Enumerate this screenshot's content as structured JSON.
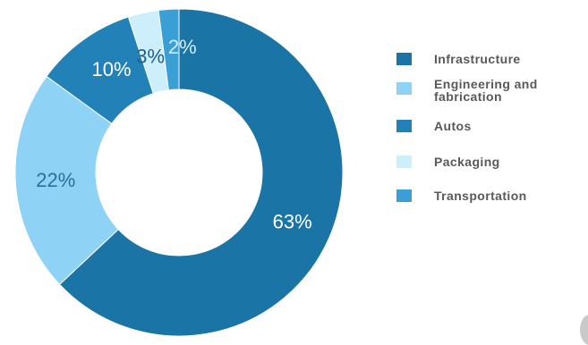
{
  "chart_data": {
    "type": "pie",
    "variant": "donut",
    "title": "",
    "categories": [
      "Infrastructure",
      "Engineering and fabrication",
      "Autos",
      "Packaging",
      "Transportation"
    ],
    "values": [
      63,
      22,
      10,
      3,
      2
    ],
    "value_labels": [
      "63%",
      "22%",
      "10%",
      "3%",
      "2%"
    ],
    "unit": "%",
    "colors": [
      "#1a74a6",
      "#8ed2f5",
      "#2282b8",
      "#cdeefb",
      "#3a9fd4"
    ],
    "label_colors": [
      "#ffffff",
      "#2c6f98",
      "#ffffff",
      "#1e5f86",
      "#d4eefb"
    ],
    "legend": {
      "position": "right",
      "entries": [
        "Infrastructure",
        "Engineering and\nfabrication",
        "Autos",
        "Packaging",
        "Transportation"
      ]
    }
  }
}
